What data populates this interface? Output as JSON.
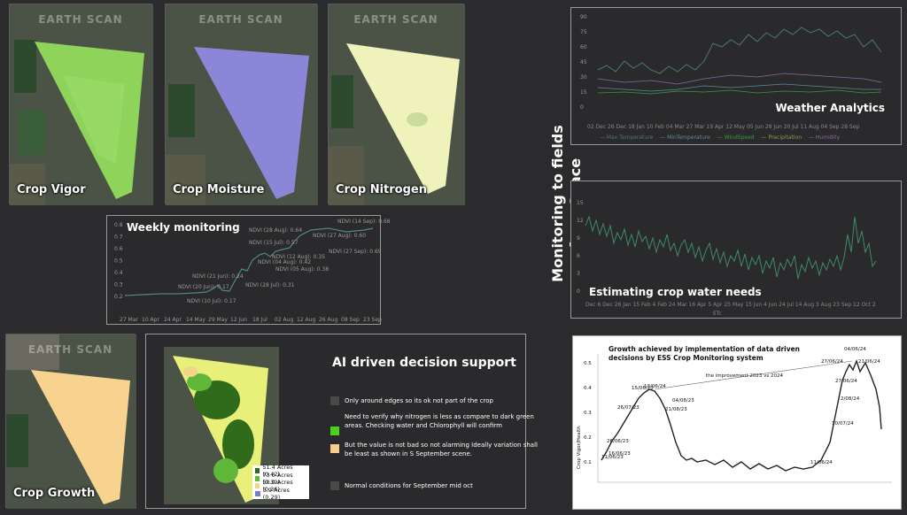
{
  "tiles": {
    "watermark": "EARTH SCAN",
    "crop_vigor": "Crop Vigor",
    "crop_moisture": "Crop Moisture",
    "crop_nitrogen": "Crop Nitrogen",
    "crop_growth": "Crop Growth"
  },
  "side_title": "Monitoring to fields from Space",
  "weekly": {
    "title": "Weekly monitoring",
    "x_labels": [
      "27 Mar",
      "10 Apr",
      "24 Apr",
      "14 May",
      "29 May",
      "12 Jun",
      "18 Jul",
      "02 Aug",
      "12 Aug",
      "26 Aug",
      "08 Sep",
      "23 Sep"
    ],
    "y_labels": [
      "0.8",
      "0.7",
      "0.6",
      "0.5",
      "0.4",
      "0.3",
      "0.2"
    ],
    "annotations": [
      "NDVI (20 Jun): 0.17",
      "NDVI (21 Jun): 0.24",
      "NDVI (10 Jul): 0.17",
      "NDVI (15 Jul): 0.57",
      "NDVI (28 Jul): 0.31",
      "NDVI (04 Aug): 0.42",
      "NDVI (28 Aug): 0.64",
      "NDVI (05 Aug): 0.38",
      "NDVI (12 Aug): 0.35",
      "NDVI (27 Aug): 0.60",
      "NDVI (14 Sep): 0.68",
      "NDVI (27 Sep): 0.69"
    ]
  },
  "weather": {
    "title": "Weather Analytics",
    "y_labels": [
      "90",
      "75",
      "60",
      "45",
      "30",
      "15",
      "0"
    ],
    "x_labels": "02 Dec 26 Dec 18 Jan 10 Feb 04 Mar 27 Mar 19 Apr 12 May 05 Jun 28 Jun 20 Jul 11 Aug 04 Sep 28 Sep",
    "legend": [
      "Max Temperature",
      "MinTemperature",
      "WindSpeed",
      "Precipitation",
      "Humidity"
    ],
    "colors": {
      "max_temp": "#4a7a6a",
      "min_temp": "#5a8aa0",
      "wind": "#3a9a3a",
      "precip": "#8a9a4a",
      "humidity": "#8a6aa0"
    }
  },
  "water": {
    "title": "Estimating crop water needs",
    "y_labels": [
      "15",
      "12",
      "9",
      "6",
      "3",
      "0"
    ],
    "x_labels": "Dec 6 Dec 26 Jan 15 Feb 4 Feb 24 Mar 16 Apr 5 Apr 25 May 15 Jun 4 Jun 24 Jul 14 Aug 3 Aug 23 Sep 12 Oct 2",
    "legend": "ETc"
  },
  "ai": {
    "title": "AI driven decision support",
    "items": [
      "Only around edges so its ok not part of the crop",
      "Need to verify why nitrogen is less as compare to dark green areas. Checking water and Chlorophyll will confirm",
      "But the value is not bad so not alarming Ideally variation shall be least as shown in S September scene.",
      "Normal conditions for September mid oct"
    ],
    "swatch_colors": [
      "#4a4a4a",
      "#4cd11b",
      "#f7cd8e",
      "#4a4a4a"
    ],
    "area_legend": [
      {
        "label": "51.4 Acres (0.42)",
        "color": "#2f6b1a"
      },
      {
        "label": "73 0 Acres (0.39)",
        "color": "#5fb83a"
      },
      {
        "label": "50.0 Acres (0.36)",
        "color": "#f3d58a"
      },
      {
        "label": "3.9 Acres (0.29)",
        "color": "#7a7ad0"
      }
    ]
  },
  "growth": {
    "title_line1": "Growth achieved by implementation of data driven",
    "title_line2": "decisions by ESS Crop Monitoring system",
    "ylabel": "Crop Vigor/Health",
    "y_labels": [
      "0.5",
      "0.4",
      "0.3",
      "0.2",
      "0.1"
    ],
    "improvement_label": "the improvement 2023 vs 2024",
    "annotations": [
      "04/06/24",
      "27/06/24",
      "21/06/24",
      "27/06/24",
      "13/06/24",
      "10/07/24",
      "2/08/24",
      "11/06/24",
      "15/06/23",
      "04/08/23",
      "21/08/23",
      "26/07/23",
      "26/06/23",
      "16/06/23",
      "11/06/23"
    ]
  }
}
